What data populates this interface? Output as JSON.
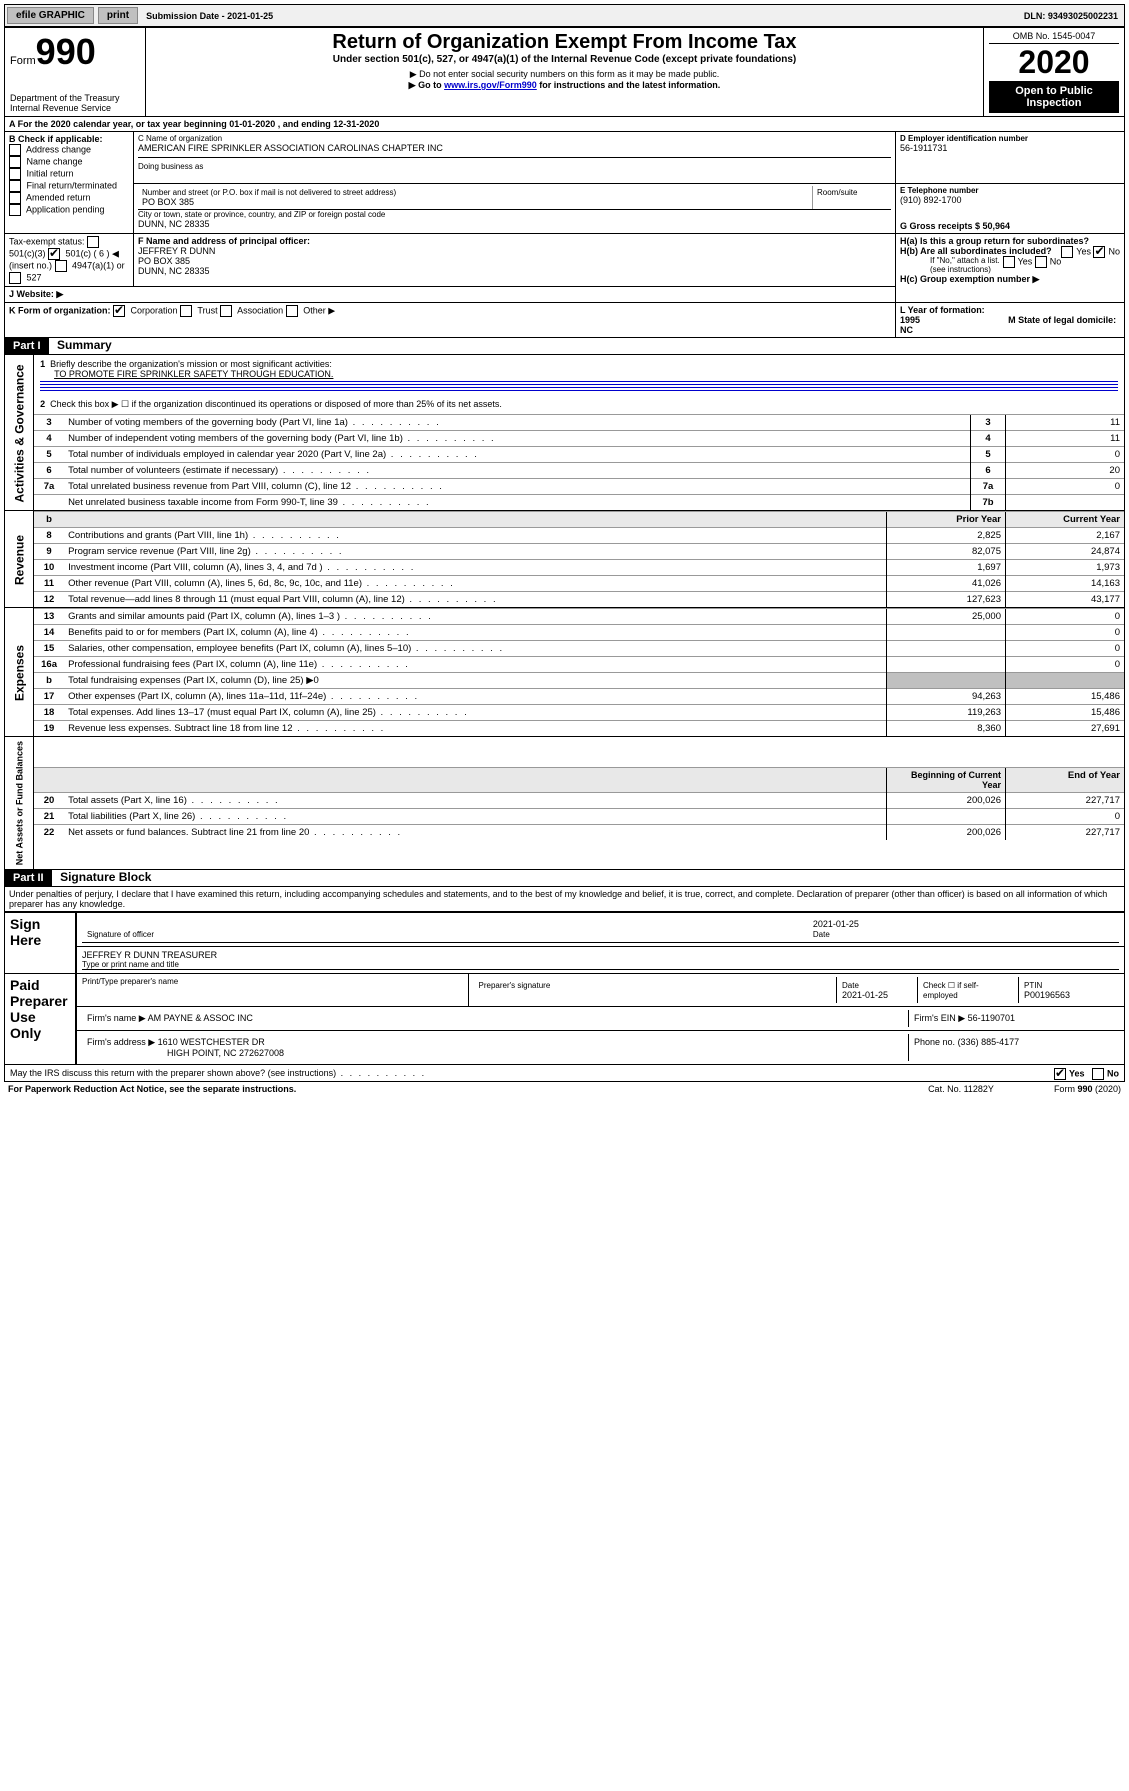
{
  "topbar": {
    "efile": "efile GRAPHIC",
    "print": "print",
    "sub_date_label": "Submission Date - 2021-01-25",
    "dln": "DLN: 93493025002231"
  },
  "header": {
    "form_label": "Form",
    "form_number": "990",
    "title": "Return of Organization Exempt From Income Tax",
    "subtitle": "Under section 501(c), 527, or 4947(a)(1) of the Internal Revenue Code (except private foundations)",
    "note1": "▶ Do not enter social security numbers on this form as it may be made public.",
    "note2_pre": "▶ Go to ",
    "note2_link": "www.irs.gov/Form990",
    "note2_post": " for instructions and the latest information.",
    "dept": "Department of the Treasury",
    "irs": "Internal Revenue Service",
    "omb": "OMB No. 1545-0047",
    "year": "2020",
    "open": "Open to Public Inspection"
  },
  "A": {
    "line": "A For the 2020 calendar year, or tax year beginning 01-01-2020   , and ending 12-31-2020",
    "B_label": "B Check if applicable:",
    "B_items": [
      "Address change",
      "Name change",
      "Initial return",
      "Final return/terminated",
      "Amended return",
      "Application pending"
    ],
    "C_label": "C Name of organization",
    "C_name": "AMERICAN FIRE SPRINKLER ASSOCIATION CAROLINAS CHAPTER INC",
    "dba_label": "Doing business as",
    "addr_label": "Number and street (or P.O. box if mail is not delivered to street address)",
    "room_label": "Room/suite",
    "addr": "PO BOX 385",
    "city_label": "City or town, state or province, country, and ZIP or foreign postal code",
    "city": "DUNN, NC  28335",
    "D_label": "D Employer identification number",
    "D_val": "56-1911731",
    "E_label": "E Telephone number",
    "E_val": "(910) 892-1700",
    "G_label": "G Gross receipts $ 50,964",
    "F_label": "F  Name and address of principal officer:",
    "F_name": "JEFFREY R DUNN",
    "F_addr1": "PO BOX 385",
    "F_addr2": "DUNN, NC  28335",
    "Ha_label": "H(a)  Is this a group return for subordinates?",
    "Ha_yes": "Yes",
    "Ha_no": "No",
    "Hb_label": "H(b)  Are all subordinates included?",
    "Hb_note": "If \"No,\" attach a list. (see instructions)",
    "Hc_label": "H(c)  Group exemption number ▶",
    "I_label": "Tax-exempt status:",
    "I_501c3": "501(c)(3)",
    "I_501c": "501(c) ( 6 ) ◀ (insert no.)",
    "I_4947": "4947(a)(1) or",
    "I_527": "527",
    "J_label": "J   Website: ▶",
    "K_label": "K Form of organization:",
    "K_corp": "Corporation",
    "K_trust": "Trust",
    "K_assoc": "Association",
    "K_other": "Other ▶",
    "L_label": "L Year of formation: 1995",
    "M_label": "M State of legal domicile: NC"
  },
  "part1": {
    "header": "Part I",
    "title": "Summary",
    "q1_label": "Briefly describe the organization's mission or most significant activities:",
    "q1_text": "TO PROMOTE FIRE SPRINKLER SAFETY THROUGH EDUCATION.",
    "q2": "Check this box ▶ ☐  if the organization discontinued its operations or disposed of more than 25% of its net assets.",
    "rows_gov": [
      {
        "n": "3",
        "t": "Number of voting members of the governing body (Part VI, line 1a)",
        "b": "3",
        "v": "11"
      },
      {
        "n": "4",
        "t": "Number of independent voting members of the governing body (Part VI, line 1b)",
        "b": "4",
        "v": "11"
      },
      {
        "n": "5",
        "t": "Total number of individuals employed in calendar year 2020 (Part V, line 2a)",
        "b": "5",
        "v": "0"
      },
      {
        "n": "6",
        "t": "Total number of volunteers (estimate if necessary)",
        "b": "6",
        "v": "20"
      },
      {
        "n": "7a",
        "t": "Total unrelated business revenue from Part VIII, column (C), line 12",
        "b": "7a",
        "v": "0"
      },
      {
        "n": "",
        "t": "Net unrelated business taxable income from Form 990-T, line 39",
        "b": "7b",
        "v": ""
      }
    ],
    "col_prior": "Prior Year",
    "col_current": "Current Year",
    "rows_rev": [
      {
        "n": "8",
        "t": "Contributions and grants (Part VIII, line 1h)",
        "p": "2,825",
        "c": "2,167"
      },
      {
        "n": "9",
        "t": "Program service revenue (Part VIII, line 2g)",
        "p": "82,075",
        "c": "24,874"
      },
      {
        "n": "10",
        "t": "Investment income (Part VIII, column (A), lines 3, 4, and 7d )",
        "p": "1,697",
        "c": "1,973"
      },
      {
        "n": "11",
        "t": "Other revenue (Part VIII, column (A), lines 5, 6d, 8c, 9c, 10c, and 11e)",
        "p": "41,026",
        "c": "14,163"
      },
      {
        "n": "12",
        "t": "Total revenue—add lines 8 through 11 (must equal Part VIII, column (A), line 12)",
        "p": "127,623",
        "c": "43,177"
      }
    ],
    "rows_exp": [
      {
        "n": "13",
        "t": "Grants and similar amounts paid (Part IX, column (A), lines 1–3 )",
        "p": "25,000",
        "c": "0"
      },
      {
        "n": "14",
        "t": "Benefits paid to or for members (Part IX, column (A), line 4)",
        "p": "",
        "c": "0"
      },
      {
        "n": "15",
        "t": "Salaries, other compensation, employee benefits (Part IX, column (A), lines 5–10)",
        "p": "",
        "c": "0"
      },
      {
        "n": "16a",
        "t": "Professional fundraising fees (Part IX, column (A), line 11e)",
        "p": "",
        "c": "0"
      },
      {
        "n": "b",
        "t": "Total fundraising expenses (Part IX, column (D), line 25) ▶0",
        "p": "",
        "c": "",
        "shade": true
      },
      {
        "n": "17",
        "t": "Other expenses (Part IX, column (A), lines 11a–11d, 11f–24e)",
        "p": "94,263",
        "c": "15,486"
      },
      {
        "n": "18",
        "t": "Total expenses. Add lines 13–17 (must equal Part IX, column (A), line 25)",
        "p": "119,263",
        "c": "15,486"
      },
      {
        "n": "19",
        "t": "Revenue less expenses. Subtract line 18 from line 12",
        "p": "8,360",
        "c": "27,691"
      }
    ],
    "col_begin": "Beginning of Current Year",
    "col_end": "End of Year",
    "rows_net": [
      {
        "n": "20",
        "t": "Total assets (Part X, line 16)",
        "p": "200,026",
        "c": "227,717"
      },
      {
        "n": "21",
        "t": "Total liabilities (Part X, line 26)",
        "p": "",
        "c": "0"
      },
      {
        "n": "22",
        "t": "Net assets or fund balances. Subtract line 21 from line 20",
        "p": "200,026",
        "c": "227,717"
      }
    ],
    "vert_gov": "Activities & Governance",
    "vert_rev": "Revenue",
    "vert_exp": "Expenses",
    "vert_net": "Net Assets or Fund Balances"
  },
  "part2": {
    "header": "Part II",
    "title": "Signature Block",
    "oath": "Under penalties of perjury, I declare that I have examined this return, including accompanying schedules and statements, and to the best of my knowledge and belief, it is true, correct, and complete. Declaration of preparer (other than officer) is based on all information of which preparer has any knowledge.",
    "sign_here": "Sign Here",
    "sig_officer": "Signature of officer",
    "sig_date": "2021-01-25",
    "date_label": "Date",
    "officer_name": "JEFFREY R DUNN  TREASURER",
    "type_name": "Type or print name and title",
    "paid": "Paid Preparer Use Only",
    "prep_name_label": "Print/Type preparer's name",
    "prep_sig_label": "Preparer's signature",
    "prep_date_label": "Date",
    "prep_date": "2021-01-25",
    "check_self": "Check ☐ if self-employed",
    "ptin_label": "PTIN",
    "ptin": "P00196563",
    "firm_name_label": "Firm's name    ▶",
    "firm_name": "AM PAYNE & ASSOC INC",
    "firm_ein_label": "Firm's EIN ▶",
    "firm_ein": "56-1190701",
    "firm_addr_label": "Firm's address ▶",
    "firm_addr1": "1610 WESTCHESTER DR",
    "firm_addr2": "HIGH POINT, NC  272627008",
    "phone_label": "Phone no.",
    "phone": "(336) 885-4177",
    "discuss": "May the IRS discuss this return with the preparer shown above? (see instructions)",
    "yes": "Yes",
    "no": "No"
  },
  "footer": {
    "pra": "For Paperwork Reduction Act Notice, see the separate instructions.",
    "cat": "Cat. No. 11282Y",
    "form": "Form 990 (2020)"
  }
}
